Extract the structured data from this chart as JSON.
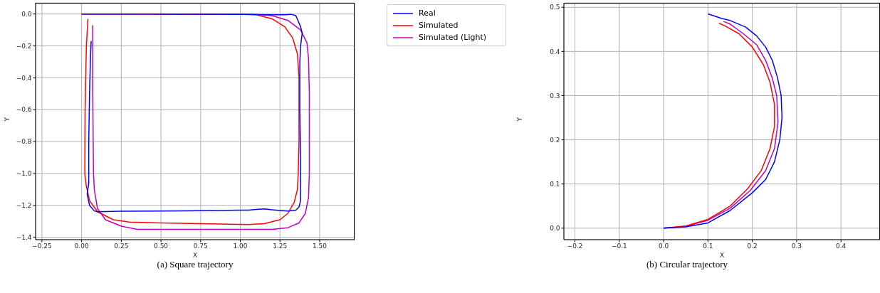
{
  "chart_data": [
    {
      "type": "line",
      "xlabel": "X",
      "ylabel": "Y",
      "annotations": [
        "(a) Square trajectory"
      ],
      "legend": "top right",
      "grid": true,
      "xlim": [
        -0.29,
        1.72
      ],
      "ylim": [
        -1.415,
        0.07
      ],
      "xticks": [
        {
          "value": -0.25,
          "label": "−0.25"
        },
        {
          "value": 0,
          "label": "0.00"
        },
        {
          "value": 0.25,
          "label": "0.25"
        },
        {
          "value": 0.5,
          "label": "0.50"
        },
        {
          "value": 0.75,
          "label": "0.75"
        },
        {
          "value": 1,
          "label": "1.00"
        },
        {
          "value": 1.25,
          "label": "1.25"
        },
        {
          "value": 1.5,
          "label": "1.50"
        }
      ],
      "yticks": [
        {
          "value": -1.4,
          "label": "−1.4"
        },
        {
          "value": -1.2,
          "label": "−1.2"
        },
        {
          "value": -1,
          "label": "−1.0"
        },
        {
          "value": -0.8,
          "label": "−0.8"
        },
        {
          "value": -0.6,
          "label": "−0.6"
        },
        {
          "value": -0.4,
          "label": "−0.4"
        },
        {
          "value": -0.2,
          "label": "−0.2"
        },
        {
          "value": 0,
          "label": "0.0"
        }
      ],
      "series": [
        {
          "name": "Real",
          "color": "#0000ff",
          "x": [
            0,
            0.5,
            1.0,
            1.2,
            1.28,
            1.32,
            1.35,
            1.38,
            1.39,
            1.38,
            1.375,
            1.375,
            1.38,
            1.38,
            1.38,
            1.37,
            1.35,
            1.3,
            1.25,
            1.2,
            1.15,
            1.1,
            1.05,
            1.0,
            0.75,
            0.5,
            0.25,
            0.1,
            0.08,
            0.05,
            0.035,
            0.045,
            0.045,
            0.045,
            0.05,
            0.055,
            0.06
          ],
          "values": [
            0,
            0,
            -0.003,
            -0.005,
            -0.005,
            -0.002,
            -0.01,
            -0.08,
            -0.12,
            -0.2,
            -0.3,
            -0.6,
            -0.9,
            -1.1,
            -1.17,
            -1.21,
            -1.23,
            -1.235,
            -1.232,
            -1.228,
            -1.222,
            -1.225,
            -1.23,
            -1.23,
            -1.233,
            -1.235,
            -1.237,
            -1.24,
            -1.235,
            -1.2,
            -1.13,
            -1.06,
            -1.0,
            -0.8,
            -0.5,
            -0.3,
            -0.17
          ]
        },
        {
          "name": "Simulated",
          "color": "#ff0000",
          "x": [
            0,
            1.0,
            1.1,
            1.2,
            1.28,
            1.33,
            1.36,
            1.37,
            1.37,
            1.365,
            1.36,
            1.34,
            1.3,
            1.25,
            1.15,
            1.05,
            0.75,
            0.5,
            0.3,
            0.2,
            0.1,
            0.05,
            0.03,
            0.02,
            0.022,
            0.03,
            0.04
          ],
          "values": [
            0,
            0,
            -0.005,
            -0.03,
            -0.08,
            -0.15,
            -0.25,
            -0.4,
            -0.8,
            -1.0,
            -1.1,
            -1.18,
            -1.25,
            -1.29,
            -1.315,
            -1.32,
            -1.315,
            -1.31,
            -1.305,
            -1.29,
            -1.24,
            -1.17,
            -1.08,
            -1.0,
            -0.6,
            -0.2,
            -0.03
          ]
        },
        {
          "name": "Simulated (Light)",
          "color": "#bf00bf",
          "x": [
            0,
            1.1,
            1.2,
            1.3,
            1.38,
            1.42,
            1.43,
            1.435,
            1.435,
            1.43,
            1.41,
            1.37,
            1.3,
            1.2,
            1.0,
            0.5,
            0.35,
            0.25,
            0.15,
            0.1,
            0.08,
            0.075,
            0.07,
            0.07
          ],
          "values": [
            0,
            -0.002,
            -0.01,
            -0.04,
            -0.1,
            -0.18,
            -0.28,
            -0.5,
            -1.0,
            -1.15,
            -1.25,
            -1.31,
            -1.34,
            -1.35,
            -1.35,
            -1.35,
            -1.35,
            -1.33,
            -1.29,
            -1.22,
            -1.1,
            -1.0,
            -0.5,
            -0.07
          ]
        }
      ]
    },
    {
      "type": "line",
      "xlabel": "X",
      "ylabel": "Y",
      "annotations": [
        "(b) Circular trajectory"
      ],
      "grid": true,
      "xlim": [
        -0.225,
        0.488
      ],
      "ylim": [
        -0.026,
        0.51
      ],
      "xticks": [
        {
          "value": -0.2,
          "label": "−0.2"
        },
        {
          "value": -0.1,
          "label": "−0.1"
        },
        {
          "value": 0,
          "label": "0.0"
        },
        {
          "value": 0.1,
          "label": "0.1"
        },
        {
          "value": 0.2,
          "label": "0.2"
        },
        {
          "value": 0.3,
          "label": "0.3"
        },
        {
          "value": 0.4,
          "label": "0.4"
        }
      ],
      "yticks": [
        {
          "value": 0,
          "label": "0.0"
        },
        {
          "value": 0.1,
          "label": "0.1"
        },
        {
          "value": 0.2,
          "label": "0.2"
        },
        {
          "value": 0.3,
          "label": "0.3"
        },
        {
          "value": 0.4,
          "label": "0.4"
        },
        {
          "value": 0.5,
          "label": "0.5"
        }
      ],
      "series": [
        {
          "color": "#0000ff",
          "x": [
            0,
            0.05,
            0.1,
            0.15,
            0.2,
            0.23,
            0.25,
            0.262,
            0.267,
            0.265,
            0.257,
            0.245,
            0.23,
            0.21,
            0.185,
            0.15,
            0.13,
            0.1
          ],
          "values": [
            0,
            0.003,
            0.012,
            0.04,
            0.08,
            0.11,
            0.15,
            0.2,
            0.25,
            0.3,
            0.34,
            0.38,
            0.41,
            0.435,
            0.455,
            0.47,
            0.475,
            0.485
          ]
        },
        {
          "color": "#ff0000",
          "x": [
            0,
            0.05,
            0.1,
            0.15,
            0.19,
            0.22,
            0.24,
            0.25,
            0.25,
            0.24,
            0.225,
            0.2,
            0.17,
            0.14,
            0.125
          ],
          "values": [
            0,
            0.005,
            0.02,
            0.05,
            0.09,
            0.13,
            0.18,
            0.23,
            0.28,
            0.33,
            0.37,
            0.41,
            0.44,
            0.457,
            0.464
          ]
        },
        {
          "color": "#bf00bf",
          "x": [
            0,
            0.05,
            0.1,
            0.15,
            0.195,
            0.23,
            0.25,
            0.258,
            0.255,
            0.245,
            0.23,
            0.21,
            0.18,
            0.15,
            0.135
          ],
          "values": [
            0,
            0.004,
            0.018,
            0.045,
            0.085,
            0.13,
            0.18,
            0.24,
            0.3,
            0.34,
            0.38,
            0.415,
            0.44,
            0.462,
            0.468
          ]
        }
      ]
    }
  ]
}
